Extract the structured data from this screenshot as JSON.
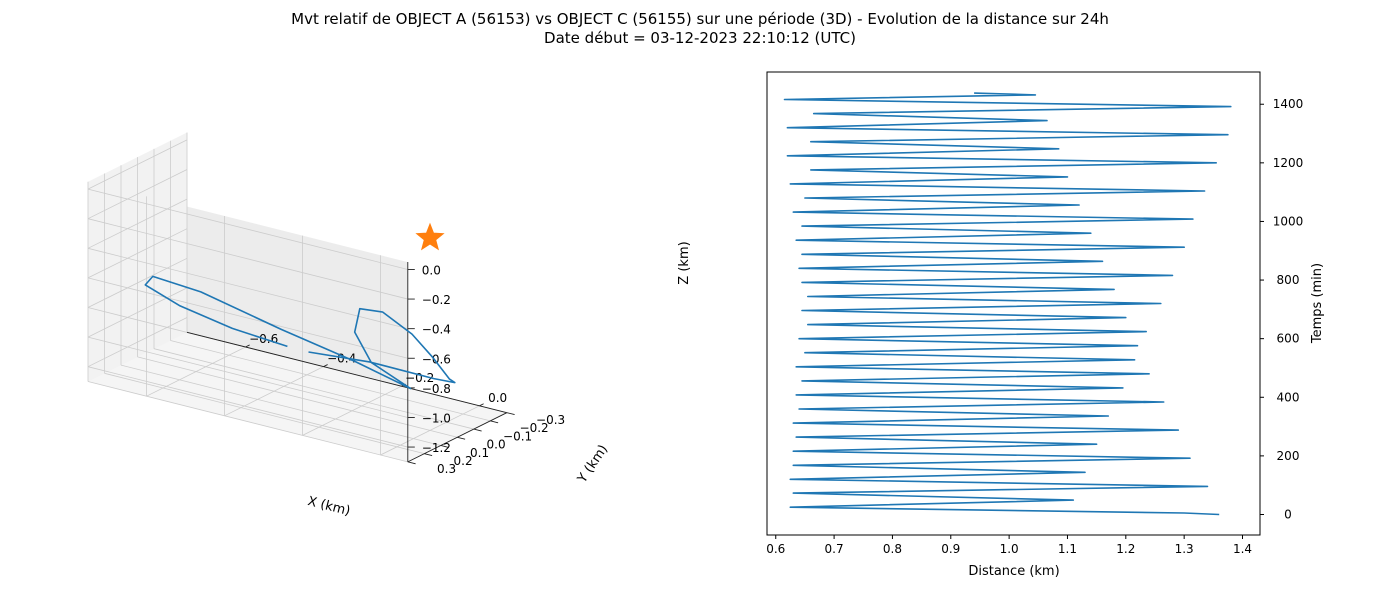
{
  "figure": {
    "title_line1": "Mvt relatif de OBJECT A (56153) vs OBJECT C (56155) sur une période (3D) - Evolution de la distance sur 24h",
    "title_line2": "Date début = 03-12-2023 22:10:12 (UTC)"
  },
  "colors": {
    "line": "#1f77b4",
    "marker": "#ff7f0e",
    "pane": "#f2f2f2",
    "grid": "#cccccc"
  },
  "chart_data": [
    {
      "type": "line3d",
      "xlabel": "X (km)",
      "ylabel": "Y (km)",
      "zlabel": "Z (km)",
      "x_ticks": [
        "−0.6",
        "−0.4",
        "−0.2",
        "0.0"
      ],
      "y_ticks": [
        "−0.3",
        "−0.2",
        "−0.1",
        "0.0",
        "0.1",
        "0.2",
        "0.3"
      ],
      "z_ticks": [
        "0.0",
        "−0.2",
        "−0.4",
        "−0.6",
        "−0.8",
        "−1.0",
        "−1.2"
      ],
      "series": [
        {
          "marker": "line",
          "points": [
            {
              "x": -0.43,
              "y": -0.28,
              "z": -1.21
            },
            {
              "x": -0.28,
              "y": -0.3,
              "z": -1.19
            },
            {
              "x": -0.1,
              "y": -0.26,
              "z": -1.16
            },
            {
              "x": 0.0,
              "y": -0.15,
              "z": -1.06
            },
            {
              "x": 0.05,
              "y": 0.0,
              "z": -0.92
            },
            {
              "x": 0.05,
              "y": 0.1,
              "z": -0.72
            },
            {
              "x": 0.03,
              "y": 0.18,
              "z": -0.53
            },
            {
              "x": -0.02,
              "y": 0.24,
              "z": -0.38
            },
            {
              "x": -0.07,
              "y": 0.26,
              "z": -0.38
            },
            {
              "x": -0.1,
              "y": 0.22,
              "z": -0.58
            },
            {
              "x": -0.1,
              "y": 0.12,
              "z": -0.84
            },
            {
              "x": -0.05,
              "y": 0.0,
              "z": -1.05
            },
            {
              "x": -0.17,
              "y": 0.05,
              "z": -0.92
            },
            {
              "x": -0.33,
              "y": 0.12,
              "z": -0.77
            },
            {
              "x": -0.52,
              "y": 0.16,
              "z": -0.62
            },
            {
              "x": -0.66,
              "y": 0.12,
              "z": -0.63
            },
            {
              "x": -0.73,
              "y": 0.0,
              "z": -0.8
            },
            {
              "x": -0.7,
              "y": -0.14,
              "z": -1.0
            },
            {
              "x": -0.6,
              "y": -0.22,
              "z": -1.13
            },
            {
              "x": -0.48,
              "y": -0.27,
              "z": -1.2
            }
          ]
        },
        {
          "marker": "star",
          "points": [
            {
              "x": 0.0,
              "y": 0.0,
              "z": 0.0
            }
          ]
        }
      ]
    },
    {
      "type": "line",
      "xlabel": "Distance (km)",
      "ylabel": "Temps (min)",
      "xlim": [
        0.585,
        1.43
      ],
      "ylim": [
        -70,
        1510
      ],
      "x_ticks": [
        0.6,
        0.7,
        0.8,
        0.9,
        1.0,
        1.1,
        1.2,
        1.3,
        1.4
      ],
      "y_ticks": [
        0,
        200,
        400,
        600,
        800,
        1000,
        1200,
        1400
      ],
      "series": [
        {
          "points": [
            [
              1.36,
              0
            ],
            [
              1.3,
              5
            ],
            [
              0.625,
              25
            ],
            [
              1.11,
              49
            ],
            [
              0.63,
              73
            ],
            [
              1.34,
              96
            ],
            [
              0.625,
              120
            ],
            [
              1.13,
              144
            ],
            [
              0.63,
              168
            ],
            [
              1.31,
              192
            ],
            [
              0.63,
              216
            ],
            [
              1.15,
              240
            ],
            [
              0.635,
              264
            ],
            [
              1.29,
              288
            ],
            [
              0.63,
              312
            ],
            [
              1.17,
              336
            ],
            [
              0.64,
              360
            ],
            [
              1.265,
              384
            ],
            [
              0.635,
              408
            ],
            [
              1.195,
              432
            ],
            [
              0.645,
              456
            ],
            [
              1.24,
              480
            ],
            [
              0.635,
              504
            ],
            [
              1.215,
              528
            ],
            [
              0.65,
              552
            ],
            [
              1.22,
              576
            ],
            [
              0.64,
              600
            ],
            [
              1.235,
              624
            ],
            [
              0.655,
              648
            ],
            [
              1.2,
              672
            ],
            [
              0.645,
              696
            ],
            [
              1.26,
              720
            ],
            [
              0.655,
              744
            ],
            [
              1.18,
              768
            ],
            [
              0.645,
              792
            ],
            [
              1.28,
              816
            ],
            [
              0.64,
              840
            ],
            [
              1.16,
              864
            ],
            [
              0.645,
              888
            ],
            [
              1.3,
              912
            ],
            [
              0.635,
              936
            ],
            [
              1.14,
              960
            ],
            [
              0.645,
              984
            ],
            [
              1.315,
              1008
            ],
            [
              0.63,
              1032
            ],
            [
              1.12,
              1056
            ],
            [
              0.65,
              1080
            ],
            [
              1.335,
              1104
            ],
            [
              0.625,
              1128
            ],
            [
              1.1,
              1152
            ],
            [
              0.66,
              1176
            ],
            [
              1.355,
              1200
            ],
            [
              0.62,
              1224
            ],
            [
              1.085,
              1248
            ],
            [
              0.66,
              1272
            ],
            [
              1.375,
              1296
            ],
            [
              0.62,
              1320
            ],
            [
              1.065,
              1344
            ],
            [
              0.665,
              1368
            ],
            [
              1.38,
              1392
            ],
            [
              0.615,
              1416
            ],
            [
              1.045,
              1432
            ],
            [
              0.94,
              1438
            ]
          ]
        }
      ]
    }
  ]
}
